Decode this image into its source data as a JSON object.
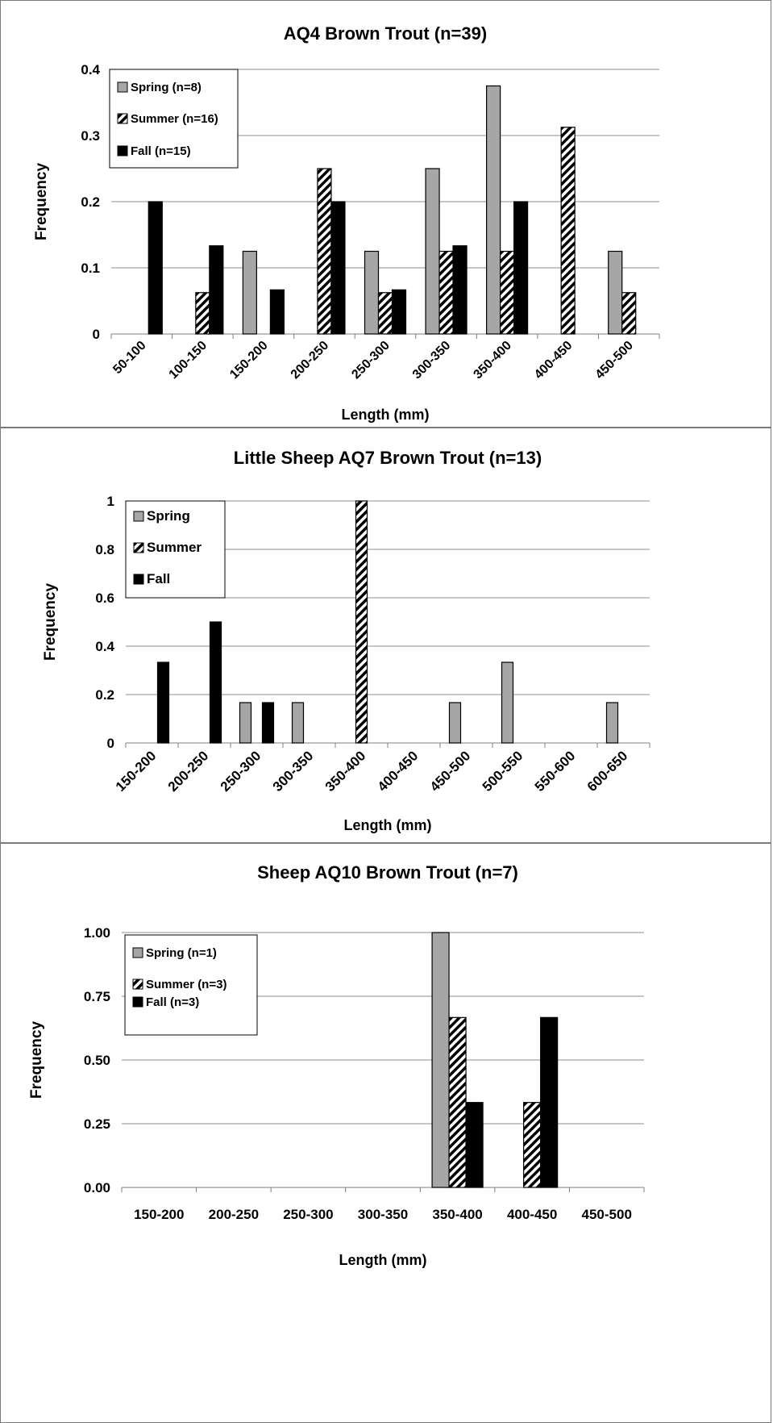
{
  "chart_data": [
    {
      "type": "bar",
      "title": "AQ4 Brown Trout (n=39)",
      "xlabel": "Length (mm)",
      "ylabel": "Frequency",
      "categories": [
        "50-100",
        "100-150",
        "150-200",
        "200-250",
        "250-300",
        "300-350",
        "350-400",
        "400-450",
        "450-500"
      ],
      "ylim": [
        0,
        0.4
      ],
      "yticks": [
        "0",
        "0.1",
        "0.2",
        "0.3",
        "0.4"
      ],
      "grid": true,
      "legend_position": "top-left",
      "tick_rotation": "diagonal",
      "series": [
        {
          "name": "Spring (n=8)",
          "style": "gray",
          "values": [
            0,
            0,
            0.125,
            0,
            0.125,
            0.25,
            0.375,
            0,
            0.125
          ]
        },
        {
          "name": "Summer (n=16)",
          "style": "hatch",
          "values": [
            0,
            0.0625,
            0,
            0.25,
            0.0625,
            0.125,
            0.125,
            0.3125,
            0.0625
          ]
        },
        {
          "name": "Fall (n=15)",
          "style": "black",
          "values": [
            0.2,
            0.1333,
            0.0667,
            0.2,
            0.0667,
            0.1333,
            0.2,
            0,
            0
          ]
        }
      ]
    },
    {
      "type": "bar",
      "title": "Little Sheep AQ7  Brown Trout (n=13)",
      "xlabel": "Length (mm)",
      "ylabel": "Frequency",
      "categories": [
        "150-200",
        "200-250",
        "250-300",
        "300-350",
        "350-400",
        "400-450",
        "450-500",
        "500-550",
        "550-600",
        "600-650"
      ],
      "ylim": [
        0,
        1
      ],
      "yticks": [
        "0",
        "0.2",
        "0.4",
        "0.6",
        "0.8",
        "1"
      ],
      "grid": true,
      "legend_position": "top-left",
      "tick_rotation": "diagonal",
      "series": [
        {
          "name": "Spring",
          "style": "gray",
          "values": [
            0,
            0,
            0.1667,
            0.1667,
            0,
            0,
            0.1667,
            0.3333,
            0,
            0.1667
          ]
        },
        {
          "name": "Summer",
          "style": "hatch",
          "values": [
            0,
            0,
            0,
            0,
            1,
            0,
            0,
            0,
            0,
            0
          ]
        },
        {
          "name": "Fall",
          "style": "black",
          "values": [
            0.3333,
            0.5,
            0.1667,
            0,
            0,
            0,
            0,
            0,
            0,
            0
          ]
        }
      ]
    },
    {
      "type": "bar",
      "title": "Sheep AQ10  Brown Trout (n=7)",
      "xlabel": "Length (mm)",
      "ylabel": "Frequency",
      "categories": [
        "150-200",
        "200-250",
        "250-300",
        "300-350",
        "350-400",
        "400-450",
        "450-500"
      ],
      "ylim": [
        0,
        1
      ],
      "yticks": [
        "0.00",
        "0.25",
        "0.50",
        "0.75",
        "1.00"
      ],
      "grid": true,
      "legend_position": "top-left",
      "tick_rotation": "horizontal",
      "series": [
        {
          "name": "Spring (n=1)",
          "style": "gray",
          "values": [
            0,
            0,
            0,
            0,
            1,
            0,
            0
          ]
        },
        {
          "name": "Summer (n=3)",
          "style": "hatch",
          "values": [
            0,
            0,
            0,
            0,
            0.6667,
            0.3333,
            0
          ]
        },
        {
          "name": "Fall (n=3)",
          "style": "black",
          "values": [
            0,
            0,
            0,
            0,
            0.3333,
            0.6667,
            0
          ]
        }
      ]
    }
  ],
  "colors": {
    "spring": "#a6a6a6",
    "summer_hatch": "#000000",
    "fall": "#000000",
    "grid": "#8c8c8c",
    "border": "#7a7a7a"
  }
}
